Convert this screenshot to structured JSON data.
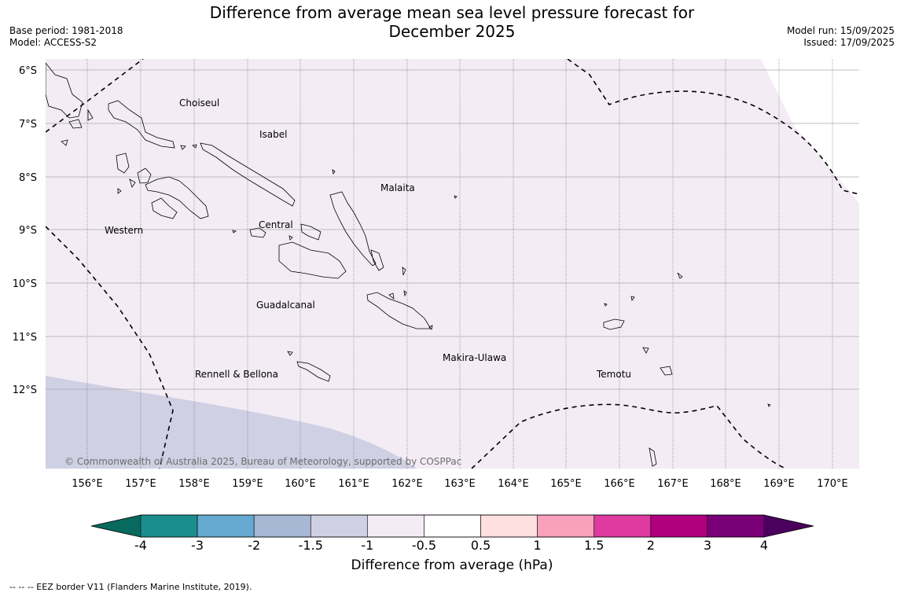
{
  "header": {
    "title_line1": "Difference from average mean sea level pressure forecast for",
    "title_line2": "December 2025",
    "base_period": "Base period: 1981-2018",
    "model": "Model: ACCESS-S2",
    "model_run": "Model run: 15/09/2025",
    "issued": "Issued: 17/09/2025"
  },
  "map": {
    "lat_labels": [
      "6°S",
      "7°S",
      "8°S",
      "9°S",
      "10°S",
      "11°S",
      "12°S"
    ],
    "lon_labels": [
      "156°E",
      "157°E",
      "158°E",
      "159°E",
      "160°E",
      "161°E",
      "162°E",
      "163°E",
      "164°E",
      "165°E",
      "166°E",
      "167°E",
      "168°E",
      "169°E",
      "170°E"
    ],
    "province_labels": [
      "Choiseul",
      "Isabel",
      "Malaita",
      "Western",
      "Central",
      "Guadalcanal",
      "Makira-Ulawa",
      "Temotu",
      "Rennell & Bellona"
    ],
    "copyright": "© Commonwealth of Australia 2025, Bureau of Meteorology, supported by COSPPac",
    "fill_colors": {
      "main": "#f3ecf5",
      "low": "#cfd0e3",
      "high": "#ffffff"
    }
  },
  "colorbar": {
    "title": "Difference from average (hPa)",
    "tick_labels": [
      "-4",
      "-3",
      "-2",
      "-1.5",
      "-1",
      "-0.5",
      "0.5",
      "1",
      "1.5",
      "2",
      "3",
      "4"
    ],
    "colors": [
      "#1a8e8e",
      "#66a9d0",
      "#a6b8d4",
      "#cfd0e3",
      "#f3ecf5",
      "#ffffff",
      "#ffe0e0",
      "#f8a0bc",
      "#de3aa0",
      "#b0007e",
      "#7a0078"
    ],
    "extend_low_color": "#08695e",
    "extend_high_color": "#4a005c"
  },
  "legend_note": "--  --  -- EEZ border V11 (Flanders Marine Institute, 2019)."
}
